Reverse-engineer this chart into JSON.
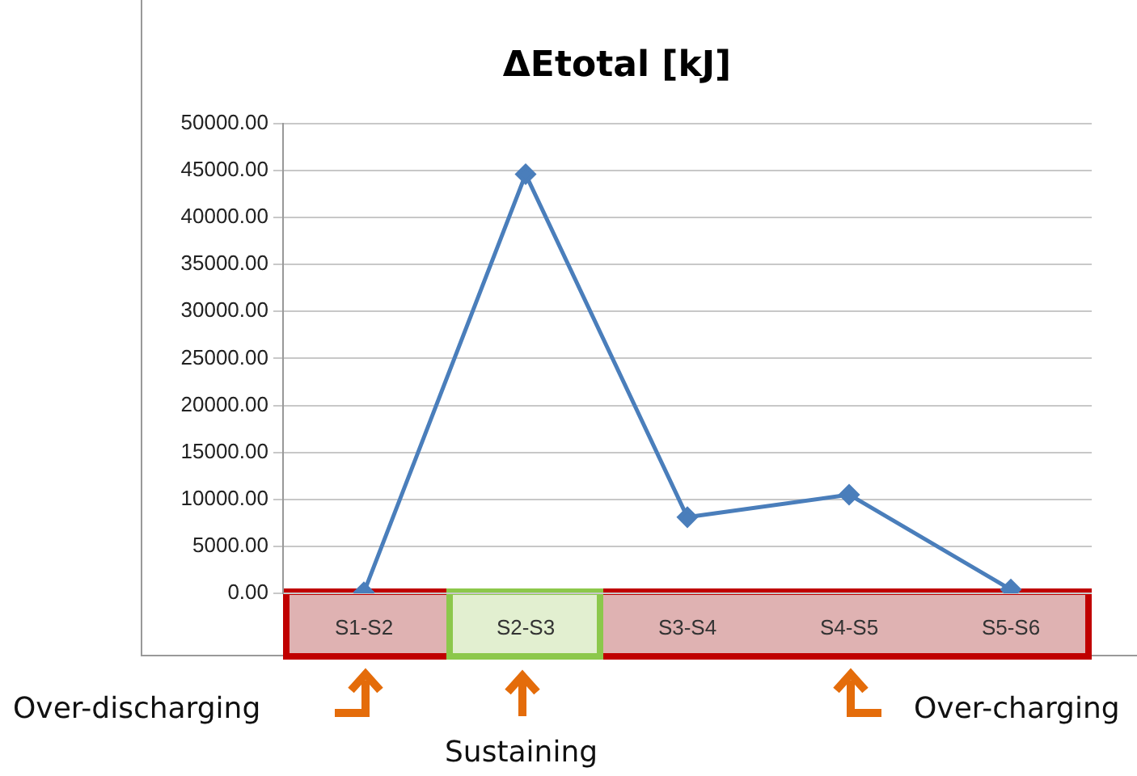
{
  "chart_data": {
    "type": "line",
    "title": "ΔEtotal [kJ]",
    "categories": [
      "S1-S2",
      "S2-S3",
      "S3-S4",
      "S4-S5",
      "S5-S6"
    ],
    "series": [
      {
        "color": "#4a7ebb",
        "values": [
          100,
          44600,
          8100,
          10500,
          400
        ]
      }
    ],
    "ylim": [
      0,
      50000
    ],
    "yticks": [
      {
        "value": 0,
        "label": "0.00"
      },
      {
        "value": 5000,
        "label": "5000.00"
      },
      {
        "value": 10000,
        "label": "10000.00"
      },
      {
        "value": 15000,
        "label": "15000.00"
      },
      {
        "value": 20000,
        "label": "20000.00"
      },
      {
        "value": 25000,
        "label": "25000.00"
      },
      {
        "value": 30000,
        "label": "30000.00"
      },
      {
        "value": 35000,
        "label": "35000.00"
      },
      {
        "value": 40000,
        "label": "40000.00"
      },
      {
        "value": 45000,
        "label": "45000.00"
      },
      {
        "value": 50000,
        "label": "50000.00"
      }
    ],
    "grid": "y",
    "marker": "diamond",
    "line_style": "solid",
    "annotations": [
      "Over-discharging",
      "Sustaining",
      "Over-charging"
    ]
  }
}
